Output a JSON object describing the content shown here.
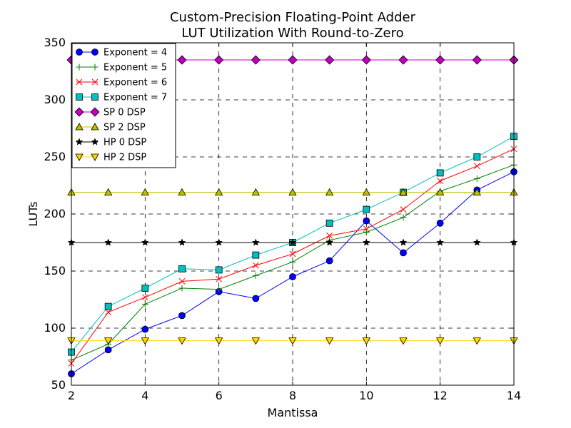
{
  "chart_data": {
    "type": "line",
    "title": [
      "Custom-Precision Floating-Point Adder",
      "LUT Utilization With Round-to-Zero"
    ],
    "xlabel": "Mantissa",
    "ylabel": "LUTs",
    "xlim": [
      2,
      14
    ],
    "ylim": [
      50,
      350
    ],
    "xticks": [
      2,
      4,
      6,
      8,
      10,
      12,
      14
    ],
    "yticks": [
      50,
      100,
      150,
      200,
      250,
      300,
      350
    ],
    "grid": true,
    "legend_position": "top-left",
    "x": [
      2,
      3,
      4,
      5,
      6,
      7,
      8,
      9,
      10,
      11,
      12,
      13,
      14
    ],
    "series": [
      {
        "name": "Exponent = 4",
        "color": "#0000ff",
        "marker": "circle",
        "values": [
          60,
          81,
          99,
          111,
          132,
          126,
          145,
          159,
          194,
          166,
          192,
          221,
          237
        ]
      },
      {
        "name": "Exponent = 5",
        "color": "#008000",
        "marker": "plus",
        "values": [
          72,
          86,
          121,
          135,
          134,
          146,
          158,
          177,
          184,
          197,
          220,
          231,
          243
        ]
      },
      {
        "name": "Exponent = 6",
        "color": "#ff0000",
        "marker": "x",
        "values": [
          69,
          114,
          127,
          141,
          143,
          155,
          165,
          181,
          187,
          204,
          229,
          242,
          257
        ]
      },
      {
        "name": "Exponent = 7",
        "color": "#00bfbf",
        "marker": "square",
        "values": [
          79,
          119,
          135,
          152,
          151,
          164,
          175,
          192,
          204,
          219,
          236,
          250,
          268
        ]
      },
      {
        "name": "SP 0 DSP",
        "color": "#bf00bf",
        "marker": "diamond",
        "values": [
          335,
          335,
          335,
          335,
          335,
          335,
          335,
          335,
          335,
          335,
          335,
          335,
          335
        ]
      },
      {
        "name": "SP 2 DSP",
        "color": "#bfbf00",
        "marker": "triangle-up",
        "values": [
          219,
          219,
          219,
          219,
          219,
          219,
          219,
          219,
          219,
          219,
          219,
          219,
          219
        ]
      },
      {
        "name": "HP 0 DSP",
        "color": "#000000",
        "marker": "star",
        "values": [
          175,
          175,
          175,
          175,
          175,
          175,
          175,
          175,
          175,
          175,
          175,
          175,
          175
        ]
      },
      {
        "name": "HP 2 DSP",
        "color": "#ffd700",
        "marker": "triangle-down",
        "values": [
          89,
          89,
          89,
          89,
          89,
          89,
          89,
          89,
          89,
          89,
          89,
          89,
          89
        ]
      }
    ]
  }
}
